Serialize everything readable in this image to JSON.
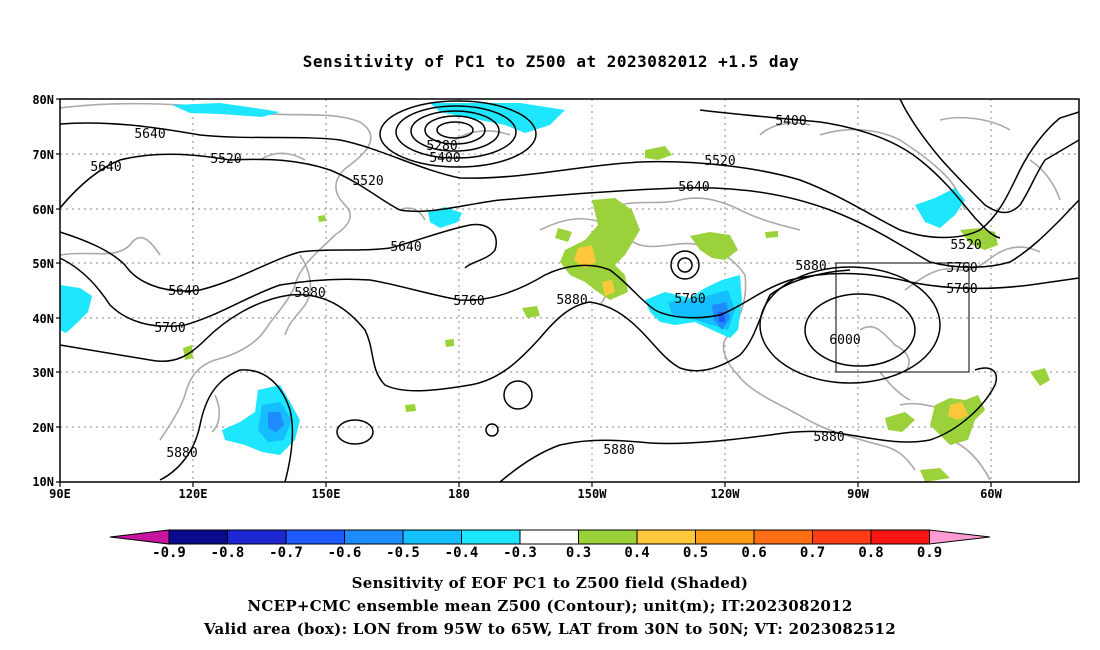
{
  "title": "Sensitivity of PC1 to Z500 at 2023082012 +1.5 day",
  "map": {
    "lon_labels": [
      "90E",
      "120E",
      "150E",
      "180",
      "150W",
      "120W",
      "90W",
      "60W"
    ],
    "lat_labels": [
      "80N",
      "70N",
      "60N",
      "50N",
      "40N",
      "30N",
      "20N",
      "10N"
    ],
    "contour_labels": [
      "5640",
      "5520",
      "5280",
      "5400",
      "5520",
      "5640",
      "5400",
      "5520",
      "5640",
      "5520",
      "5640",
      "5760",
      "5640",
      "5880",
      "5760",
      "5880",
      "5760",
      "5880",
      "6000",
      "5880",
      "5880",
      "5880"
    ],
    "box": {
      "lon_west": "95W",
      "lon_east": "65W",
      "lat_south": "30N",
      "lat_north": "50N"
    }
  },
  "colorbar": {
    "labels": [
      "-0.9",
      "-0.8",
      "-0.7",
      "-0.6",
      "-0.5",
      "-0.4",
      "-0.3",
      "0.3",
      "0.4",
      "0.5",
      "0.6",
      "0.7",
      "0.8",
      "0.9"
    ],
    "colors": [
      "#0a0a8c",
      "#1e28d2",
      "#1e5aff",
      "#1e8cff",
      "#14beff",
      "#1ee6ff",
      "#ffffff",
      "#9bd23c",
      "#ffc83c",
      "#ff9b14",
      "#ff6e14",
      "#ff3c14",
      "#ff1414"
    ],
    "left_arrow_color": "#c814a0",
    "right_arrow_color": "#ff9bd2"
  },
  "captions": {
    "line1": "Sensitivity of EOF PC1 to Z500 field (Shaded)",
    "line2": "NCEP+CMC ensemble mean Z500 (Contour); unit(m); IT:2023082012",
    "line3": "Valid area (box): LON from 95W to 65W, LAT from 30N to 50N; VT: 2023082512"
  }
}
